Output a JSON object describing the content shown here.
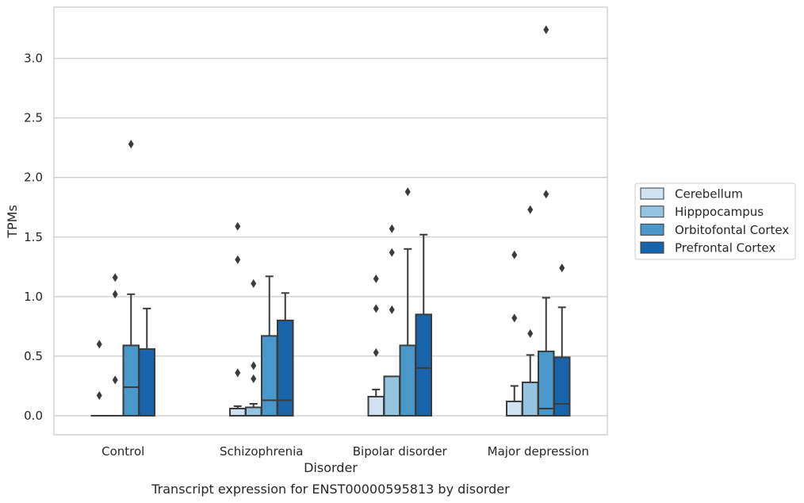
{
  "chart_data": {
    "type": "box",
    "title": "Transcript expression for ENST00000595813 by disorder",
    "xlabel": "Disorder",
    "ylabel": "TPMs",
    "categories": [
      "Control",
      "Schizophrenia",
      "Bipolar disorder",
      "Major depression"
    ],
    "ylim": [
      -0.16,
      3.43
    ],
    "yticks": [
      0.0,
      0.5,
      1.0,
      1.5,
      2.0,
      2.5,
      3.0
    ],
    "ytick_labels": [
      "0.0",
      "0.5",
      "1.0",
      "1.5",
      "2.0",
      "2.5",
      "3.0"
    ],
    "grid": true,
    "legend_position": "right",
    "series": [
      {
        "name": "Cerebellum",
        "color": "#d0e1f2",
        "boxes": [
          {
            "q1": 0.0,
            "median": 0.0,
            "q3": 0.0,
            "whisker_low": 0.0,
            "whisker_high": 0.0,
            "outliers": [
              0.17,
              0.6
            ]
          },
          {
            "q1": 0.0,
            "median": 0.0,
            "q3": 0.06,
            "whisker_low": 0.0,
            "whisker_high": 0.08,
            "outliers": [
              0.36,
              1.31,
              1.59
            ]
          },
          {
            "q1": 0.0,
            "median": 0.0,
            "q3": 0.16,
            "whisker_low": 0.0,
            "whisker_high": 0.22,
            "outliers": [
              0.53,
              0.9,
              1.15
            ]
          },
          {
            "q1": 0.0,
            "median": 0.0,
            "q3": 0.12,
            "whisker_low": 0.0,
            "whisker_high": 0.25,
            "outliers": [
              0.82,
              1.35
            ]
          }
        ]
      },
      {
        "name": "Hipppocampus",
        "color": "#94c4df",
        "boxes": [
          {
            "q1": 0.0,
            "median": 0.0,
            "q3": 0.0,
            "whisker_low": 0.0,
            "whisker_high": 0.0,
            "outliers": [
              0.3,
              1.02,
              1.16
            ]
          },
          {
            "q1": 0.0,
            "median": 0.0,
            "q3": 0.07,
            "whisker_low": 0.0,
            "whisker_high": 0.1,
            "outliers": [
              0.31,
              0.42,
              1.11
            ]
          },
          {
            "q1": 0.0,
            "median": 0.0,
            "q3": 0.33,
            "whisker_low": 0.0,
            "whisker_high": 0.33,
            "outliers": [
              0.89,
              1.37,
              1.57
            ]
          },
          {
            "q1": 0.0,
            "median": 0.0,
            "q3": 0.28,
            "whisker_low": 0.0,
            "whisker_high": 0.51,
            "outliers": [
              0.69,
              1.73
            ]
          }
        ]
      },
      {
        "name": "Orbitofontal Cortex",
        "color": "#4a98c9",
        "boxes": [
          {
            "q1": 0.0,
            "median": 0.24,
            "q3": 0.59,
            "whisker_low": 0.0,
            "whisker_high": 1.02,
            "outliers": [
              2.28
            ]
          },
          {
            "q1": 0.0,
            "median": 0.13,
            "q3": 0.67,
            "whisker_low": 0.0,
            "whisker_high": 1.17,
            "outliers": []
          },
          {
            "q1": 0.0,
            "median": 0.0,
            "q3": 0.59,
            "whisker_low": 0.0,
            "whisker_high": 1.4,
            "outliers": [
              1.88
            ]
          },
          {
            "q1": 0.0,
            "median": 0.06,
            "q3": 0.54,
            "whisker_low": 0.0,
            "whisker_high": 0.99,
            "outliers": [
              1.86,
              3.24
            ]
          }
        ]
      },
      {
        "name": "Prefrontal Cortex",
        "color": "#1764ab",
        "boxes": [
          {
            "q1": 0.0,
            "median": 0.0,
            "q3": 0.56,
            "whisker_low": 0.0,
            "whisker_high": 0.9,
            "outliers": []
          },
          {
            "q1": 0.0,
            "median": 0.13,
            "q3": 0.8,
            "whisker_low": 0.0,
            "whisker_high": 1.03,
            "outliers": []
          },
          {
            "q1": 0.0,
            "median": 0.4,
            "q3": 0.85,
            "whisker_low": 0.0,
            "whisker_high": 1.52,
            "outliers": []
          },
          {
            "q1": 0.0,
            "median": 0.1,
            "q3": 0.49,
            "whisker_low": 0.0,
            "whisker_high": 0.91,
            "outliers": [
              1.24
            ]
          }
        ]
      }
    ]
  }
}
